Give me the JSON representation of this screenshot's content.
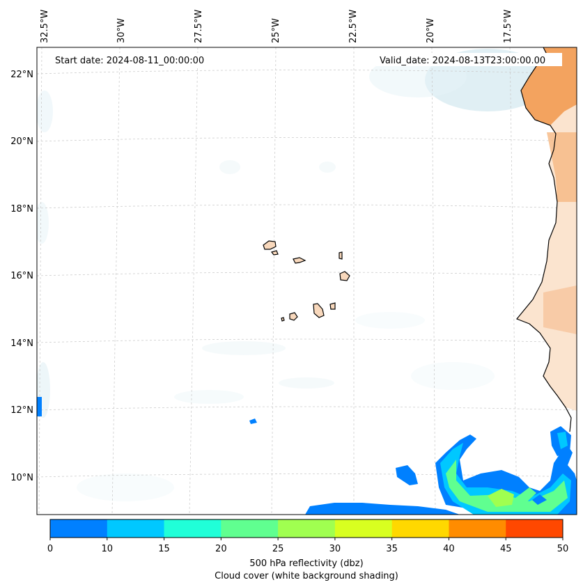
{
  "header": {
    "start_date": "Start date: 2024-08-11_00:00:00",
    "valid_date": "Valid_date: 2024-08-13T23:00:00.00"
  },
  "axes": {
    "longitude_labels": [
      "32.5°W",
      "30°W",
      "27.5°W",
      "25°W",
      "22.5°W",
      "20°W",
      "17.5°W"
    ],
    "latitude_labels": [
      "22°N",
      "20°N",
      "18°N",
      "16°N",
      "14°N",
      "12°N",
      "10°N"
    ]
  },
  "colorbar": {
    "ticks": [
      "0",
      "10",
      "15",
      "20",
      "25",
      "30",
      "35",
      "40",
      "45",
      "50"
    ],
    "colors": [
      "#0080ff",
      "#00c8ff",
      "#20ffd8",
      "#60ff90",
      "#a0ff50",
      "#d8ff20",
      "#ffd800",
      "#ff8c00",
      "#ff4800"
    ],
    "label_line1": "500 hPa reflectivity (dbz)",
    "label_line2": "Cloud cover (white background shading)"
  },
  "colors": {
    "land": "#f3a35f",
    "land_light": "#fbe0c8",
    "island_fill": "#f8d8bc",
    "cloud": "#dcefF4",
    "grid": "#c8c8c8"
  }
}
